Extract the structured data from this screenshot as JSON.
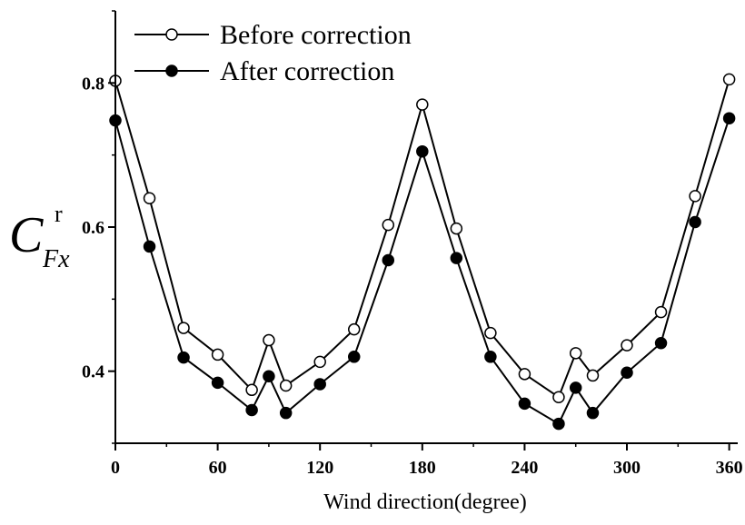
{
  "chart_data": {
    "type": "line",
    "title": "",
    "xlabel": "Wind direction(degree)",
    "ylabel": {
      "main": "C",
      "subscript": "Fx",
      "superscript": "r"
    },
    "xlim": [
      0,
      365
    ],
    "ylim": [
      0.3,
      0.9
    ],
    "xticks": [
      0,
      60,
      120,
      180,
      240,
      300,
      360
    ],
    "yticks": [
      0.4,
      0.6,
      0.8
    ],
    "xtick_labels": [
      "0",
      "60",
      "120",
      "180",
      "240",
      "300",
      "360"
    ],
    "ytick_labels": [
      "0.4",
      "0.6",
      "0.8"
    ],
    "grid": false,
    "legend_position": "top-left",
    "x": [
      0,
      20,
      40,
      60,
      80,
      90,
      100,
      120,
      140,
      160,
      180,
      200,
      220,
      240,
      260,
      270,
      280,
      300,
      320,
      340,
      360
    ],
    "series": [
      {
        "name": "Before correction",
        "marker": "open-circle",
        "values": [
          0.803,
          0.64,
          0.46,
          0.423,
          0.374,
          0.443,
          0.38,
          0.413,
          0.458,
          0.603,
          0.77,
          0.598,
          0.453,
          0.396,
          0.364,
          0.425,
          0.394,
          0.436,
          0.482,
          0.643,
          0.805
        ]
      },
      {
        "name": "After correction",
        "marker": "filled-circle",
        "values": [
          0.748,
          0.573,
          0.419,
          0.384,
          0.346,
          0.393,
          0.342,
          0.382,
          0.42,
          0.554,
          0.705,
          0.557,
          0.42,
          0.355,
          0.327,
          0.377,
          0.342,
          0.398,
          0.439,
          0.607,
          0.751
        ]
      }
    ]
  }
}
